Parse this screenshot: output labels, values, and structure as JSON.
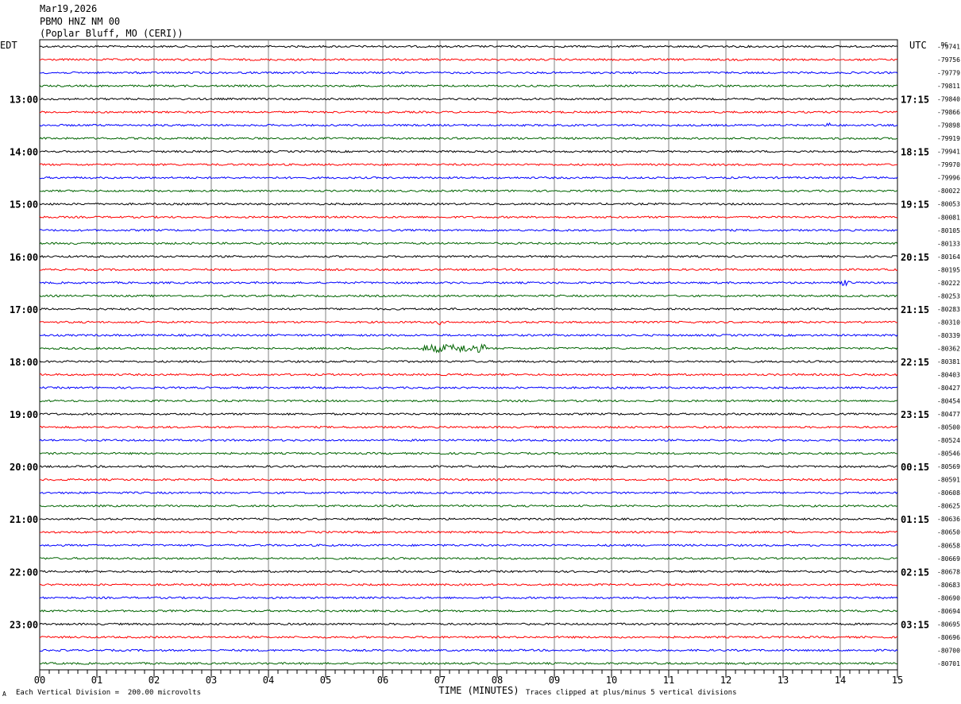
{
  "header": {
    "date": "Mar19,2026",
    "station": "PBMO HNZ NM 00",
    "location": "(Poplar Bluff, MO (CERI))"
  },
  "labels": {
    "left_zone": "EDT",
    "right_zone": "UTC",
    "dc": "DC"
  },
  "footer": {
    "scale_note": "Each Vertical Division =  200.00 microvolts",
    "clip_note": "Traces clipped at plus/minus 5 vertical divisions",
    "corner_mark": "A"
  },
  "colors": {
    "cycle": [
      "#000000",
      "#ff0000",
      "#0000ff",
      "#006400"
    ],
    "grid": "#808080"
  },
  "chart_data": {
    "type": "line",
    "title": "PBMO HNZ NM 00",
    "xlabel": "TIME (MINUTES)",
    "xlim": [
      0,
      15
    ],
    "x_ticks": [
      "00",
      "01",
      "02",
      "03",
      "04",
      "05",
      "06",
      "07",
      "08",
      "09",
      "10",
      "11",
      "12",
      "13",
      "14",
      "15"
    ],
    "traces_per_hour": 4,
    "left_hour_labels": [
      "13:00",
      "14:00",
      "15:00",
      "16:00",
      "17:00",
      "18:00",
      "19:00",
      "20:00",
      "21:00",
      "22:00",
      "23:00"
    ],
    "right_hour_labels": [
      "17:15",
      "18:15",
      "19:15",
      "20:15",
      "21:15",
      "22:15",
      "23:15",
      "00:15",
      "01:15",
      "02:15",
      "03:15"
    ],
    "dc_offsets": [
      "-79741",
      "-79756",
      "-79779",
      "-79811",
      "-79840",
      "-79866",
      "-79898",
      "-79919",
      "-79941",
      "-79970",
      "-79996",
      "-80022",
      "-80053",
      "-80081",
      "-80105",
      "-80133",
      "-80164",
      "-80195",
      "-80222",
      "-80253",
      "-80283",
      "-80310",
      "-80339",
      "-80362",
      "-80381",
      "-80403",
      "-80427",
      "-80454",
      "-80477",
      "-80500",
      "-80524",
      "-80546",
      "-80569",
      "-80591",
      "-80608",
      "-80625",
      "-80636",
      "-80650",
      "-80658",
      "-80669",
      "-80678",
      "-80683",
      "-80690",
      "-80694",
      "-80695",
      "-80696",
      "-80700",
      "-80701"
    ],
    "events": [
      {
        "trace": 23,
        "minute_start": 6.7,
        "minute_end": 7.8,
        "amplitude": "moderate"
      },
      {
        "trace": 21,
        "minute_start": 6.95,
        "minute_end": 7.0,
        "amplitude": "small"
      },
      {
        "trace": 18,
        "minute_start": 14.0,
        "minute_end": 14.2,
        "amplitude": "small"
      },
      {
        "trace": 6,
        "minute_start": 13.75,
        "minute_end": 13.85,
        "amplitude": "small"
      }
    ]
  }
}
